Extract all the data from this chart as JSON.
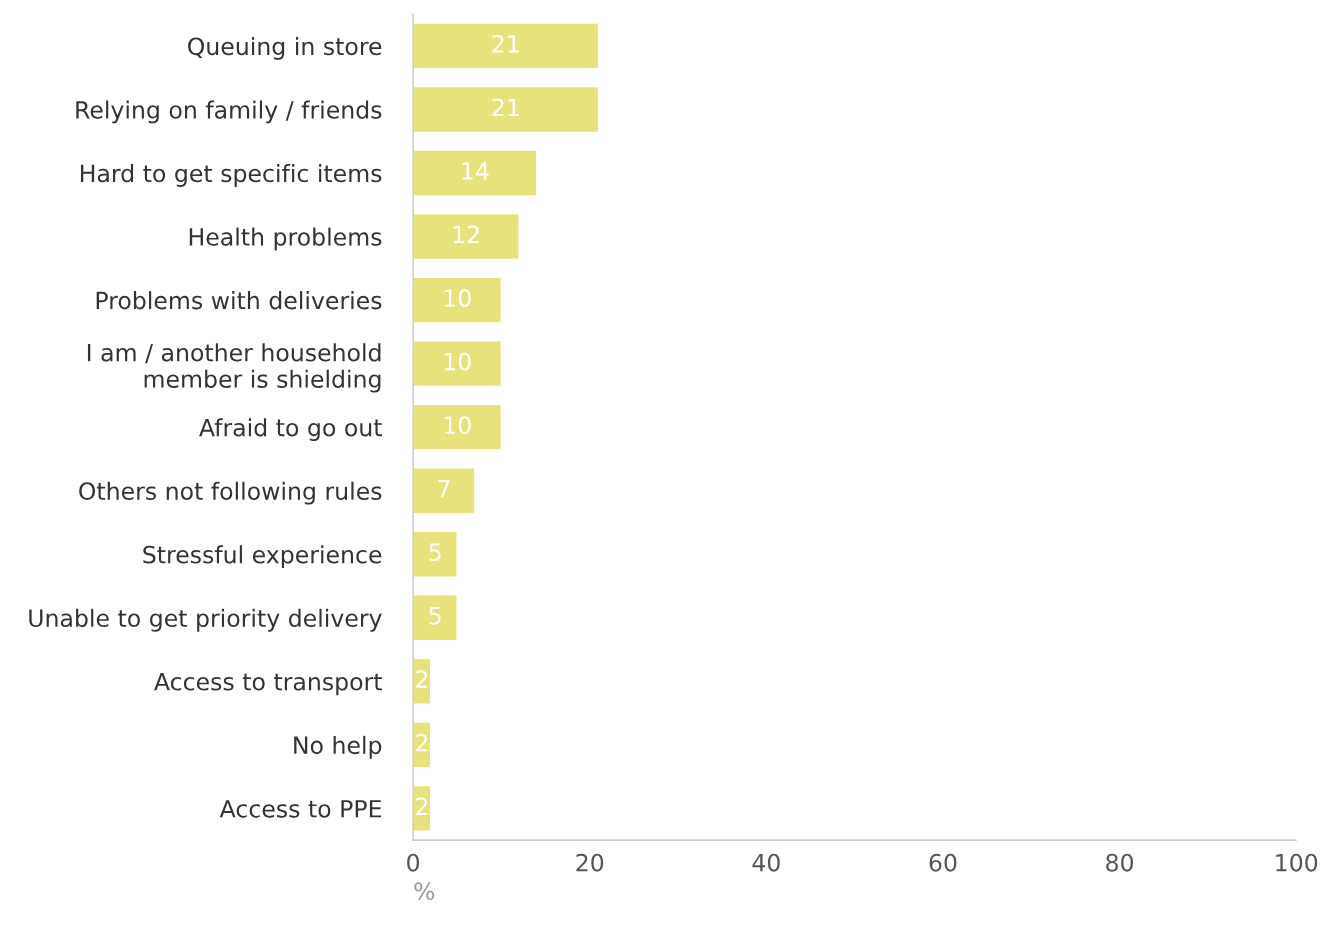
{
  "chart_data": {
    "type": "bar",
    "orientation": "horizontal",
    "categories": [
      "Queuing in store",
      "Relying on family / friends",
      "Hard to get specific items",
      "Health problems",
      "Problems with deliveries",
      "I am / another household\nmember is shielding",
      "Afraid to go out",
      "Others not following rules",
      "Stressful experience",
      "Unable to get priority delivery",
      "Access to transport",
      "No help",
      "Access to PPE"
    ],
    "values": [
      21,
      21,
      14,
      12,
      10,
      10,
      10,
      7,
      5,
      5,
      2,
      2,
      2
    ],
    "color": "#e8e27c",
    "xlim": [
      0,
      100
    ],
    "xticks": [
      0,
      20,
      40,
      60,
      80,
      100
    ],
    "xlabel": "%",
    "data_labels": true,
    "grid": false
  }
}
